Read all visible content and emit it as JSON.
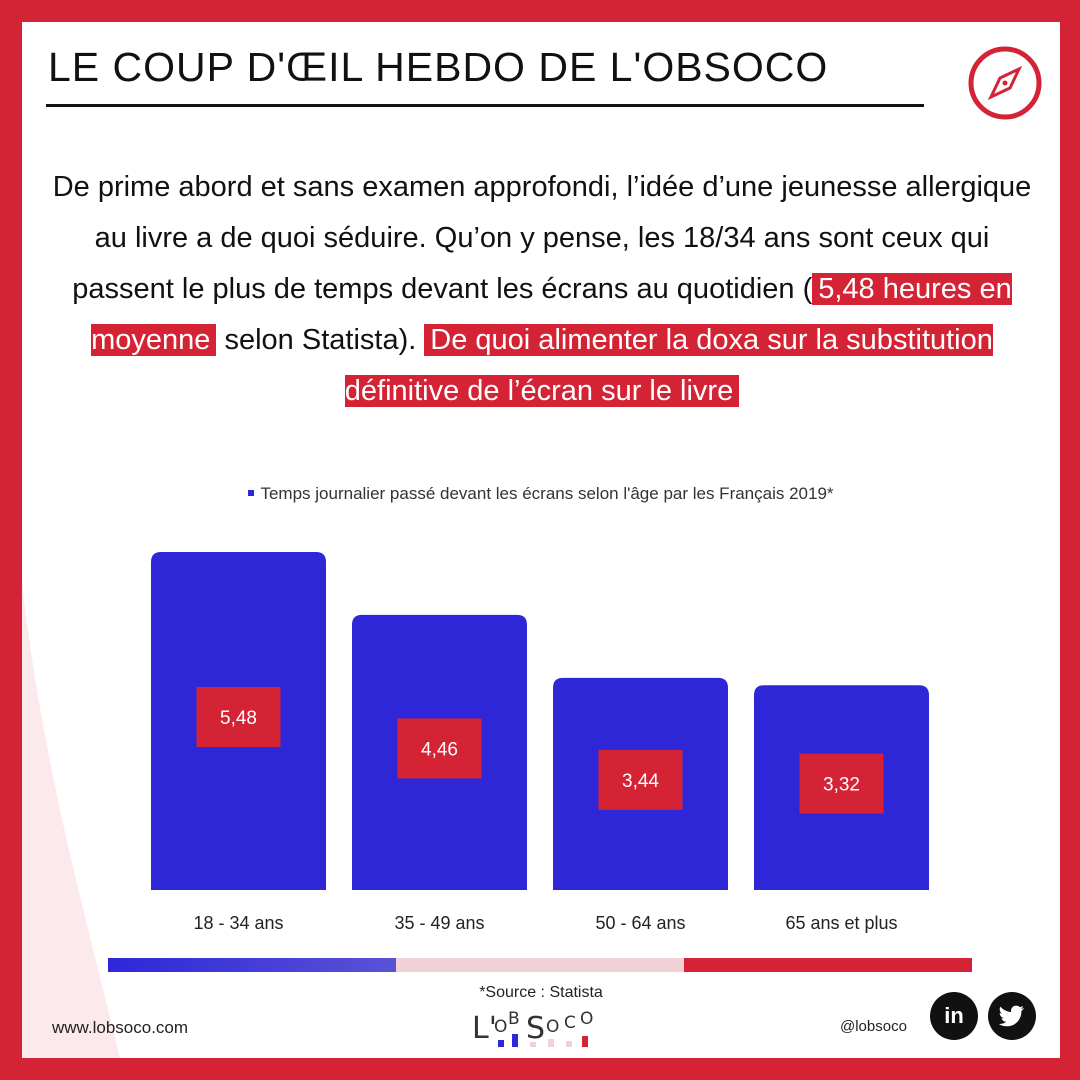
{
  "header": {
    "title": "LE COUP D'ŒIL HEBDO DE L'OBSOCO"
  },
  "intro": {
    "part1": "De prime abord et sans examen approfondi, l’idée d’une jeunesse allergique au livre a de quoi séduire. Qu’on y pense, les 18/34 ans sont ceux qui passent le plus de temps devant les écrans au quotidien (",
    "highlight1": "5,48 heures en moyenne",
    "part2": "selon Statista).",
    "highlight2": "De quoi alimenter la doxa sur la substitution définitive de l’écran sur le livre"
  },
  "chart_data": {
    "type": "bar",
    "title": "Temps journalier passé devant les écrans selon l'âge par les Français 2019*",
    "categories": [
      "18 - 34 ans",
      "35 - 49 ans",
      "50 - 64 ans",
      "65 ans et plus"
    ],
    "values": [
      5.48,
      4.46,
      3.44,
      3.32
    ],
    "value_labels": [
      "5,48",
      "4,46",
      "3,44",
      "3,32"
    ],
    "ylim": [
      0,
      5.48
    ],
    "grid": false,
    "legend": "top-center",
    "bar_color": "#2e27d8",
    "label_box_color": "#d42335"
  },
  "footer": {
    "source": "*Source : Statista",
    "website": "www.lobsoco.com",
    "handle": "@lobsoco",
    "logo_text": "L'OBSOCO",
    "linkedin": "in"
  },
  "colors": {
    "brand_red": "#d42335",
    "brand_blue": "#2e27d8",
    "light_pink": "#f2d0d7"
  },
  "icons": {
    "compass": "compass-icon",
    "linkedin": "linkedin-icon",
    "twitter": "twitter-icon"
  }
}
